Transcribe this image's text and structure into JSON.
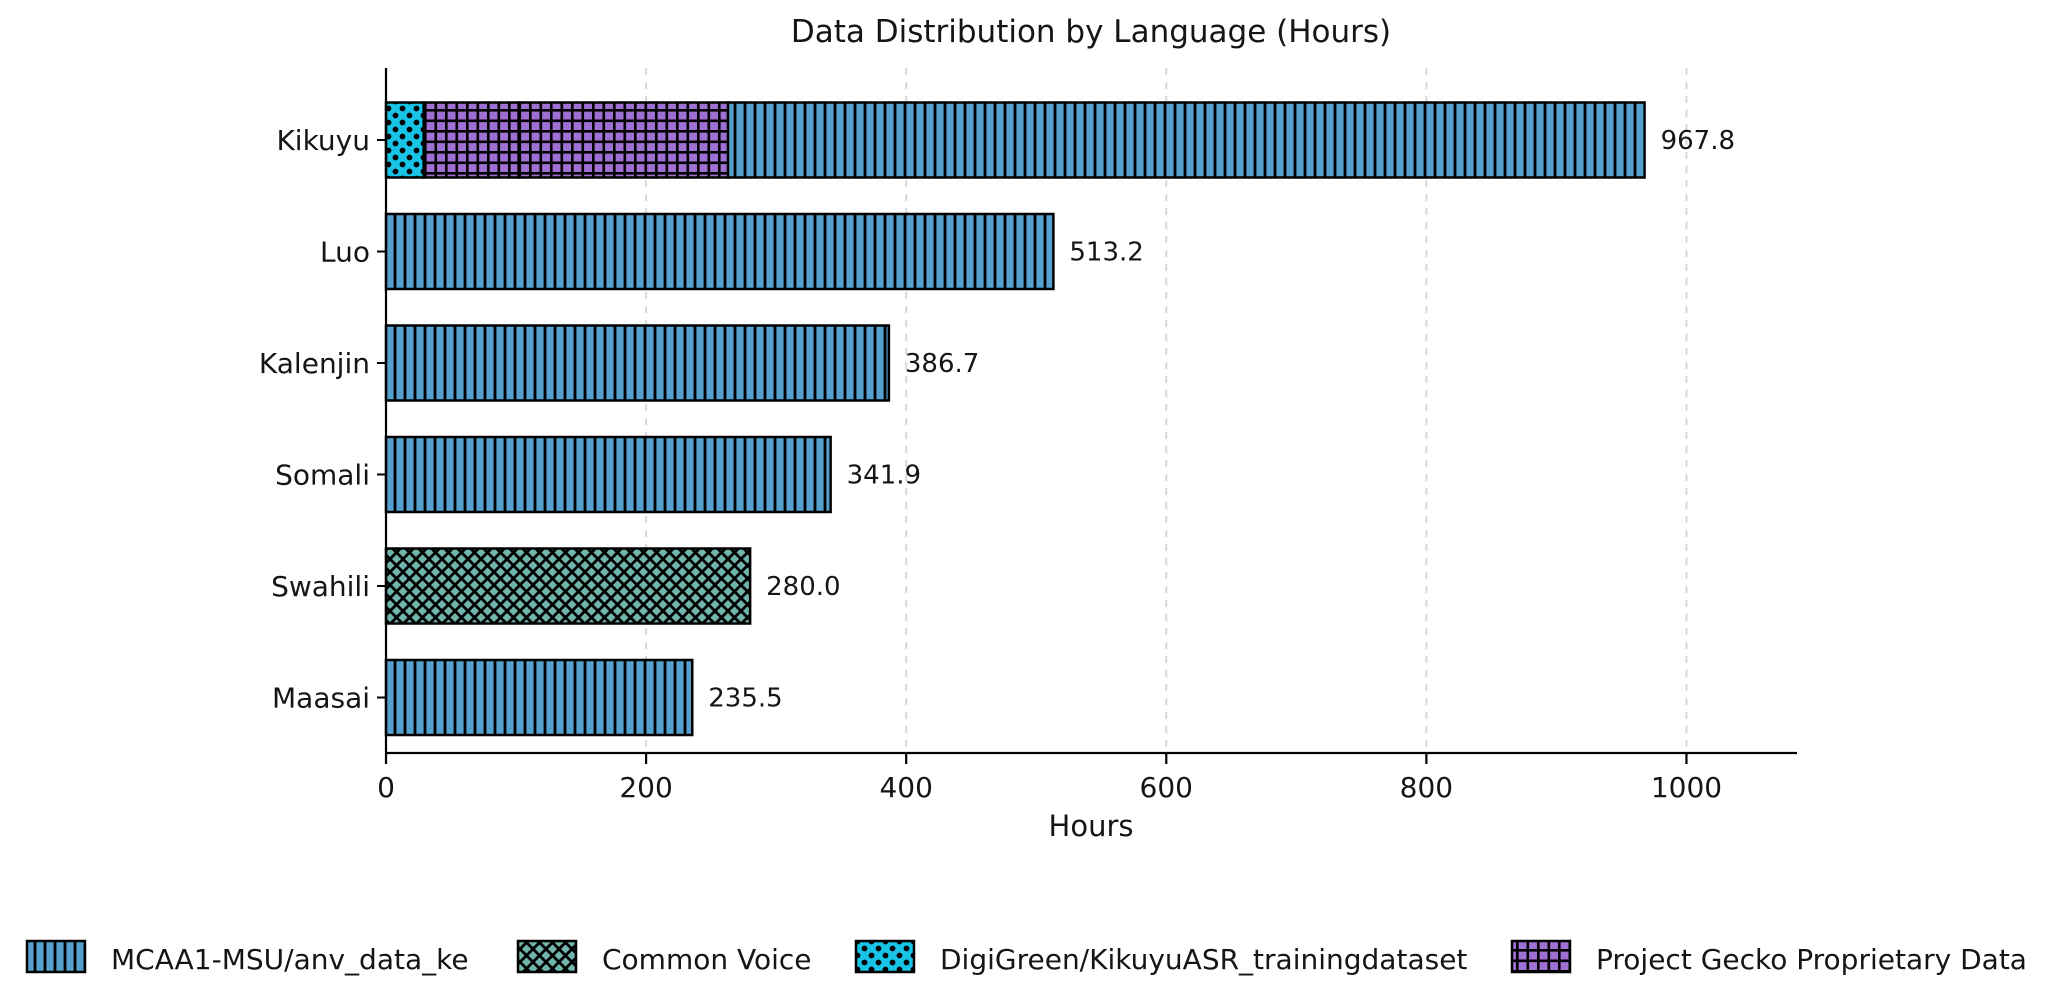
{
  "chart_data": {
    "type": "bar",
    "orientation": "horizontal",
    "title": "Data Distribution by Language (Hours)",
    "xlabel": "Hours",
    "ylabel": "",
    "xlim": [
      0,
      1085
    ],
    "x_ticks": [
      0,
      200,
      400,
      600,
      800,
      1000
    ],
    "grid": "vertical-dashed-at-xticks",
    "legend_position": "bottom",
    "axis_color": "#000000",
    "grid_color": "#d8d8d8",
    "text_color": "#151515",
    "categories": [
      "Kikuyu",
      "Luo",
      "Kalenjin",
      "Somali",
      "Swahili",
      "Maasai"
    ],
    "totals": [
      967.8,
      513.2,
      386.7,
      341.9,
      280.0,
      235.5
    ],
    "sources": [
      {
        "name": "MCAA1-MSU/anv_data_ke",
        "color": "#54a0ce",
        "hatch": "vertical-lines"
      },
      {
        "name": "Common Voice",
        "color": "#6fb5ac",
        "hatch": "crosshatch"
      },
      {
        "name": "DigiGreen/KikuyuASR_trainingdataset",
        "color": "#18c4e5",
        "hatch": "dots"
      },
      {
        "name": "Project Gecko Proprietary Data",
        "color": "#9e70d4",
        "hatch": "grid"
      }
    ],
    "bars": [
      {
        "category": "Kikuyu",
        "total": 967.8,
        "label": "967.8",
        "segments": [
          {
            "source": "DigiGreen/KikuyuASR_trainingdataset",
            "value": 29.0
          },
          {
            "source": "Project Gecko Proprietary Data",
            "value": 73.0
          },
          {
            "source": "Project Gecko Proprietary Data",
            "value": 161.0
          },
          {
            "source": "MCAA1-MSU/anv_data_ke",
            "value": 704.8
          }
        ]
      },
      {
        "category": "Luo",
        "total": 513.2,
        "label": "513.2",
        "segments": [
          {
            "source": "MCAA1-MSU/anv_data_ke",
            "value": 513.2
          }
        ]
      },
      {
        "category": "Kalenjin",
        "total": 386.7,
        "label": "386.7",
        "segments": [
          {
            "source": "MCAA1-MSU/anv_data_ke",
            "value": 386.7
          }
        ]
      },
      {
        "category": "Somali",
        "total": 341.9,
        "label": "341.9",
        "segments": [
          {
            "source": "MCAA1-MSU/anv_data_ke",
            "value": 341.9
          }
        ]
      },
      {
        "category": "Swahili",
        "total": 280.0,
        "label": "280.0",
        "segments": [
          {
            "source": "Common Voice",
            "value": 280.0
          }
        ]
      },
      {
        "category": "Maasai",
        "total": 235.5,
        "label": "235.5",
        "segments": [
          {
            "source": "MCAA1-MSU/anv_data_ke",
            "value": 235.5
          }
        ]
      }
    ],
    "legend": [
      "MCAA1-MSU/anv_data_ke",
      "Common Voice",
      "DigiGreen/KikuyuASR_trainingdataset",
      "Project Gecko Proprietary Data"
    ]
  }
}
